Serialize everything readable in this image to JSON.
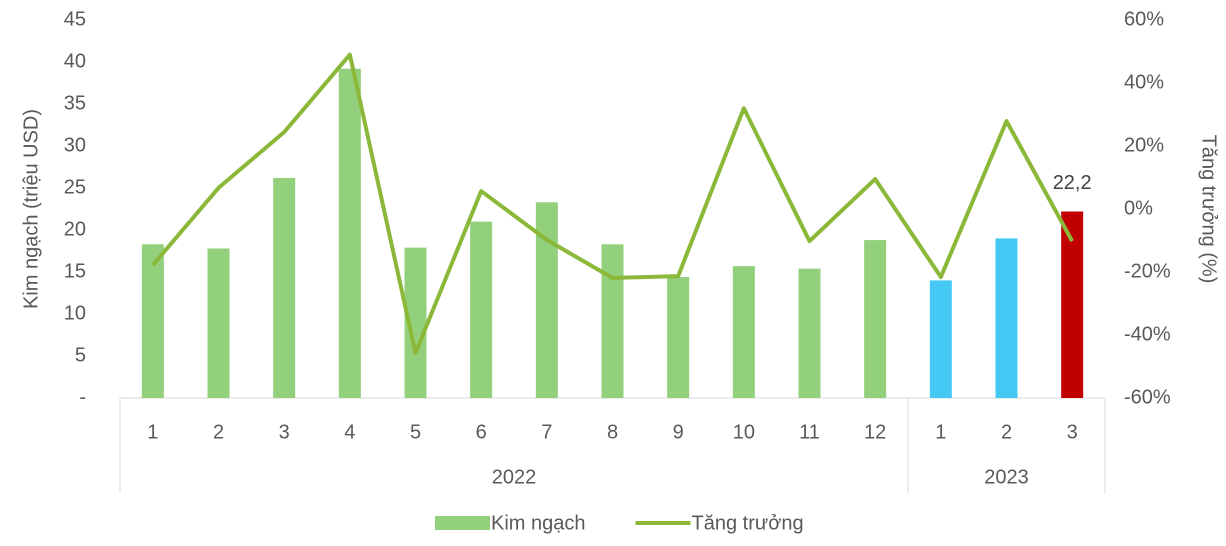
{
  "chart_data": {
    "type": "bar_line",
    "y_label": "Kim ngạch (triệu USD)",
    "y2_label": "Tăng trưởng (%)",
    "category_groups": [
      {
        "name": "2022",
        "categories": [
          "1",
          "2",
          "3",
          "4",
          "5",
          "6",
          "7",
          "8",
          "9",
          "10",
          "11",
          "12"
        ]
      },
      {
        "name": "2023",
        "categories": [
          "1",
          "2",
          "3"
        ]
      }
    ],
    "series": [
      {
        "name": "Kim ngạch",
        "type": "bar",
        "color": "#92d07c",
        "colors": [
          "#92d07c",
          "#92d07c",
          "#92d07c",
          "#92d07c",
          "#92d07c",
          "#92d07c",
          "#92d07c",
          "#92d07c",
          "#92d07c",
          "#92d07c",
          "#92d07c",
          "#92d07c",
          "#45c8f4",
          "#45c8f4",
          "#c00000"
        ],
        "values": [
          18.3,
          17.8,
          26.2,
          39.2,
          17.9,
          21.0,
          23.3,
          18.3,
          14.4,
          15.7,
          15.4,
          18.8,
          14.0,
          19.0,
          22.2
        ],
        "value_labels": [
          null,
          null,
          null,
          null,
          null,
          null,
          null,
          null,
          null,
          null,
          null,
          null,
          null,
          null,
          "22,2"
        ]
      },
      {
        "name": "Tăng trưởng",
        "type": "line",
        "axis": "y2",
        "color": "#8cb83a",
        "values": [
          -17.8,
          6.7,
          24.4,
          49,
          -45.7,
          5.7,
          -9.8,
          -21.9,
          -21.3,
          32,
          -10.2,
          9.5,
          -21.6,
          27.9,
          -10.2
        ]
      }
    ],
    "ylim": [
      0,
      45
    ],
    "yticks": [
      {
        "value": 0,
        "label": "-"
      },
      5,
      10,
      15,
      20,
      25,
      30,
      35,
      40,
      45
    ],
    "y2lim": [
      -60,
      60
    ],
    "y2ticks": [
      {
        "value": -60,
        "label": "-60%"
      },
      {
        "value": -40,
        "label": "-40%"
      },
      {
        "value": -20,
        "label": "-20%"
      },
      {
        "value": 0,
        "label": "0%"
      },
      {
        "value": 20,
        "label": "20%"
      },
      {
        "value": 40,
        "label": "40%"
      },
      {
        "value": 60,
        "label": "60%"
      }
    ]
  }
}
